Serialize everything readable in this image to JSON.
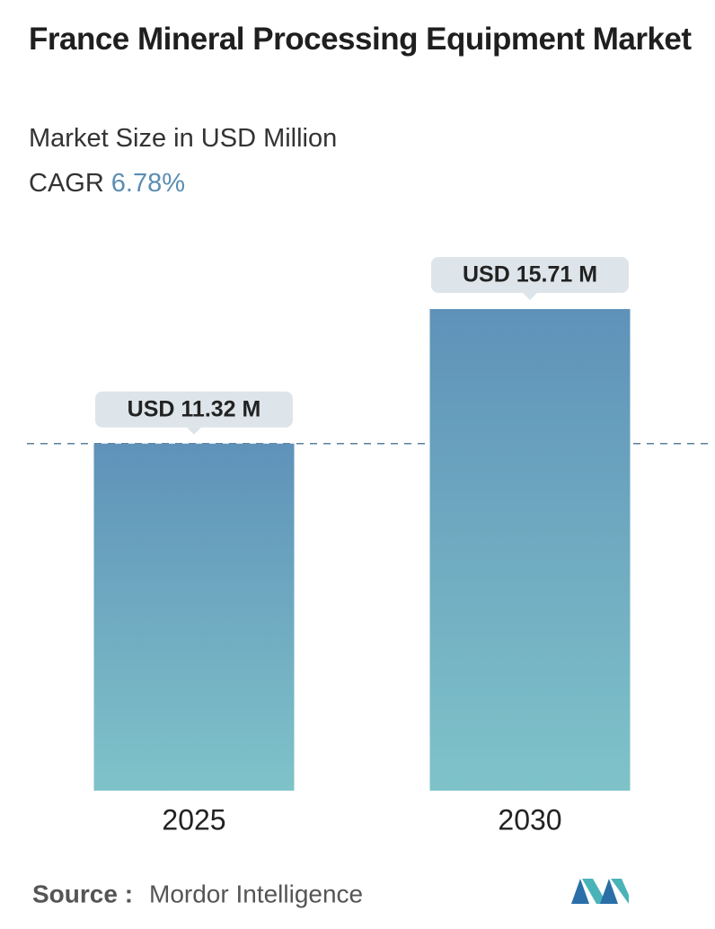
{
  "chart_data": {
    "type": "bar",
    "title": "France Mineral Processing Equipment Market",
    "subtitle": "Market Size in USD Million",
    "cagr_label": "CAGR",
    "cagr_value": "6.78%",
    "categories": [
      "2025",
      "2030"
    ],
    "values": [
      11.32,
      15.71
    ],
    "value_labels": [
      "USD 11.32 M",
      "USD 15.71 M"
    ],
    "color_top": "#5f92b9",
    "color_bottom": "#7fc3c9",
    "source_label": "Source :",
    "source": "Mordor Intelligence"
  }
}
